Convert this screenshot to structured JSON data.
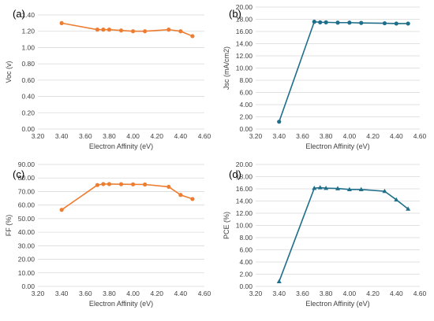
{
  "colors": {
    "orange": "#ED7D31",
    "blue": "#1F6F8B",
    "grid": "#D9D9D9",
    "text": "#404040"
  },
  "chart_data": [
    {
      "type": "line",
      "panel_label": "(a)",
      "xlabel": "Electron Affinity (eV)",
      "ylabel": "Voc (v)",
      "xlim": [
        3.2,
        4.6
      ],
      "ylim": [
        0,
        1.4
      ],
      "xticks": [
        "3.20",
        "3.40",
        "3.60",
        "3.80",
        "4.00",
        "4.20",
        "4.40",
        "4.60"
      ],
      "yticks": [
        "0.00",
        "0.20",
        "0.40",
        "0.60",
        "0.80",
        "1.00",
        "1.20",
        "1.40"
      ],
      "grid": "horizontal",
      "marker": "circle",
      "color_key": "orange",
      "series": [
        {
          "x": [
            3.4,
            3.7,
            3.75,
            3.8,
            3.9,
            4.0,
            4.1,
            4.3,
            4.4,
            4.5
          ],
          "y": [
            1.3,
            1.22,
            1.22,
            1.22,
            1.21,
            1.2,
            1.2,
            1.22,
            1.2,
            1.14
          ]
        }
      ]
    },
    {
      "type": "line",
      "panel_label": "(b)",
      "xlabel": "Electron Affinity (eV)",
      "ylabel": "Jsc (mA/cm2)",
      "xlim": [
        3.2,
        4.6
      ],
      "ylim": [
        0,
        20
      ],
      "xticks": [
        "3.20",
        "3.40",
        "3.60",
        "3.80",
        "4.00",
        "4.20",
        "4.40",
        "4.60"
      ],
      "yticks": [
        "0.00",
        "2.00",
        "4.00",
        "6.00",
        "8.00",
        "10.00",
        "12.00",
        "14.00",
        "16.00",
        "18.00",
        "20.00"
      ],
      "grid": "horizontal",
      "marker": "circle",
      "color_key": "blue",
      "series": [
        {
          "x": [
            3.4,
            3.7,
            3.75,
            3.8,
            3.9,
            4.0,
            4.1,
            4.3,
            4.4,
            4.5
          ],
          "y": [
            1.2,
            17.6,
            17.5,
            17.5,
            17.45,
            17.45,
            17.4,
            17.35,
            17.3,
            17.3
          ]
        }
      ]
    },
    {
      "type": "line",
      "panel_label": "(c)",
      "xlabel": "Electron Affinity (eV)",
      "ylabel": "FF (%)",
      "xlim": [
        3.2,
        4.6
      ],
      "ylim": [
        0,
        90
      ],
      "xticks": [
        "3.20",
        "3.40",
        "3.60",
        "3.80",
        "4.00",
        "4.20",
        "4.40",
        "4.60"
      ],
      "yticks": [
        "0.00",
        "10.00",
        "20.00",
        "30.00",
        "40.00",
        "50.00",
        "60.00",
        "70.00",
        "80.00",
        "90.00"
      ],
      "grid": "horizontal",
      "marker": "circle",
      "color_key": "orange",
      "series": [
        {
          "x": [
            3.4,
            3.7,
            3.75,
            3.8,
            3.9,
            4.0,
            4.1,
            4.3,
            4.4,
            4.5
          ],
          "y": [
            56.5,
            74.8,
            75.5,
            75.5,
            75.4,
            75.3,
            75.2,
            73.5,
            67.5,
            64.5
          ]
        }
      ]
    },
    {
      "type": "line",
      "panel_label": "(d)",
      "xlabel": "Electron Affinity (eV)",
      "ylabel": "PCE (%)",
      "xlim": [
        3.2,
        4.6
      ],
      "ylim": [
        0,
        20
      ],
      "xticks": [
        "3.20",
        "3.40",
        "3.60",
        "3.80",
        "4.00",
        "4.20",
        "4.40",
        "4.60"
      ],
      "yticks": [
        "0.00",
        "2.00",
        "4.00",
        "6.00",
        "8.00",
        "10.00",
        "12.00",
        "14.00",
        "16.00",
        "18.00",
        "20.00"
      ],
      "grid": "horizontal",
      "marker": "triangle",
      "color_key": "blue",
      "series": [
        {
          "x": [
            3.4,
            3.7,
            3.75,
            3.8,
            3.9,
            4.0,
            4.1,
            4.3,
            4.4,
            4.5
          ],
          "y": [
            0.8,
            16.1,
            16.2,
            16.1,
            16.05,
            15.9,
            15.9,
            15.6,
            14.2,
            12.7
          ]
        }
      ]
    }
  ]
}
